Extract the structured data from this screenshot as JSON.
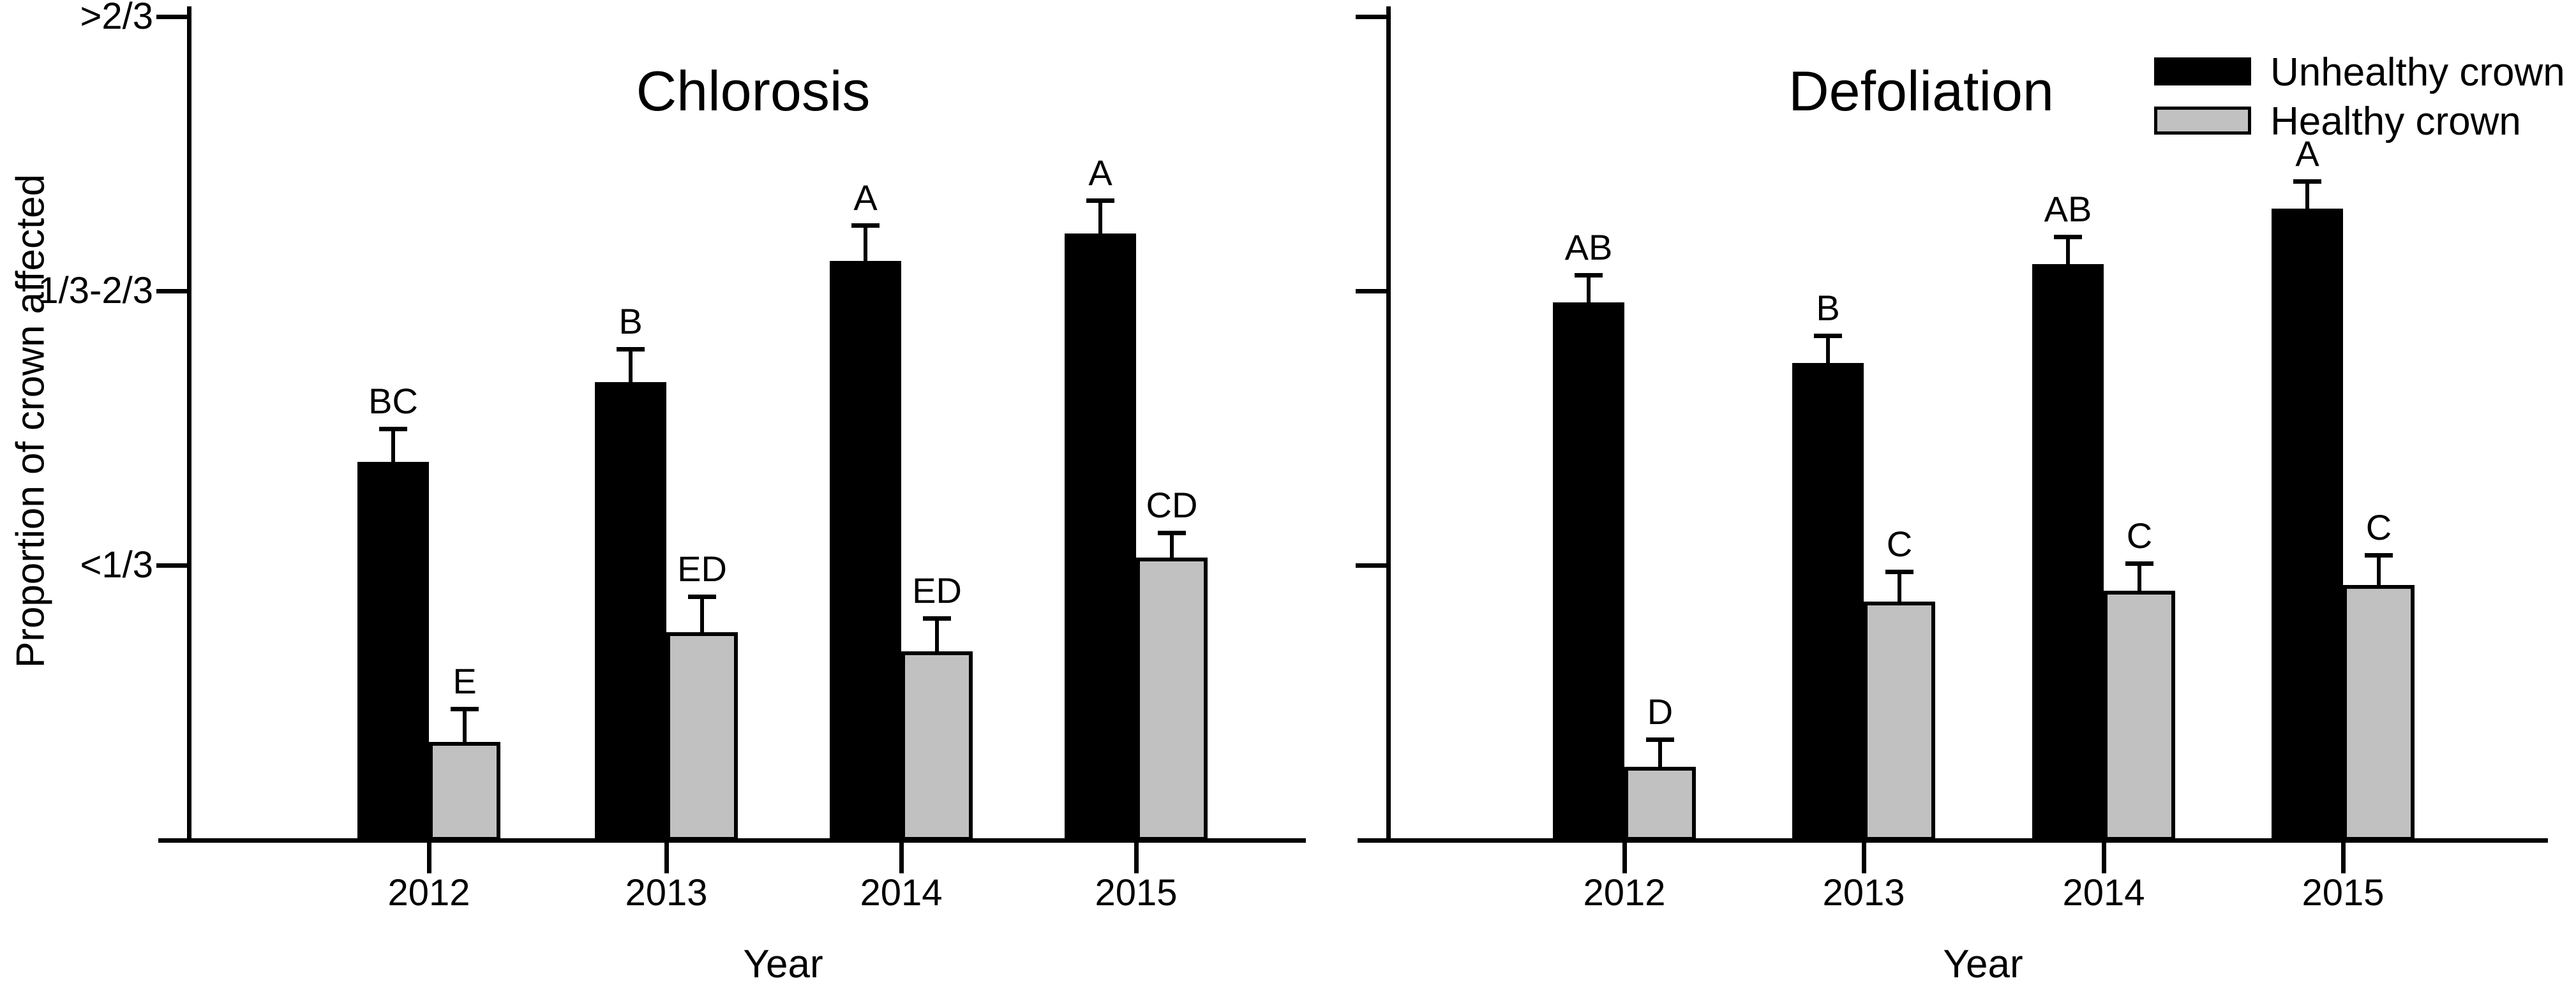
{
  "y_axis": {
    "label": "Proportion of crown affected",
    "tick_labels": [
      ">2/3",
      "1/3-2/3",
      "<1/3"
    ]
  },
  "x_axis": {
    "label": "Year"
  },
  "legend": {
    "position": "top-right",
    "entries": [
      {
        "label": "Unhealthy crown",
        "color": "#000000"
      },
      {
        "label": "Healthy crown",
        "color": "#c1c1c1"
      }
    ]
  },
  "chart_data": [
    {
      "type": "bar",
      "title": "Chlorosis",
      "categories": [
        "2012",
        "2013",
        "2014",
        "2015"
      ],
      "xlabel": "Year",
      "ylabel": "Proportion of crown affected",
      "y_tick_labels": [
        ">2/3",
        "1/3-2/3",
        "<1/3"
      ],
      "y_scale_note": "categorical thirds scale: 1 = <1/3, 2 = 1/3-2/3, 3 = >2/3",
      "ylim": [
        0,
        3
      ],
      "grid": false,
      "series": [
        {
          "name": "Unhealthy crown",
          "color": "#000000",
          "values": [
            1.38,
            1.67,
            2.11,
            2.21
          ],
          "errors_plus": [
            0.12,
            0.12,
            0.13,
            0.12
          ],
          "sig_letters": [
            "BC",
            "B",
            "A",
            "A"
          ]
        },
        {
          "name": "Healthy crown",
          "color": "#c1c1c1",
          "values": [
            0.36,
            0.76,
            0.69,
            1.03
          ],
          "errors_plus": [
            0.12,
            0.13,
            0.12,
            0.09
          ],
          "sig_letters": [
            "E",
            "ED",
            "ED",
            "CD"
          ]
        }
      ]
    },
    {
      "type": "bar",
      "title": "Defoliation",
      "categories": [
        "2012",
        "2013",
        "2014",
        "2015"
      ],
      "xlabel": "Year",
      "ylabel": "",
      "y_tick_labels": [],
      "y_scale_note": "same scale as left panel, ticks unlabeled",
      "ylim": [
        0,
        3
      ],
      "grid": false,
      "series": [
        {
          "name": "Unhealthy crown",
          "color": "#000000",
          "values": [
            1.96,
            1.74,
            2.1,
            2.3
          ],
          "errors_plus": [
            0.1,
            0.1,
            0.1,
            0.1
          ],
          "sig_letters": [
            "AB",
            "B",
            "AB",
            "A"
          ]
        },
        {
          "name": "Healthy crown",
          "color": "#c1c1c1",
          "values": [
            0.27,
            0.87,
            0.91,
            0.93
          ],
          "errors_plus": [
            0.1,
            0.11,
            0.1,
            0.11
          ],
          "sig_letters": [
            "D",
            "C",
            "C",
            "C"
          ]
        }
      ]
    }
  ]
}
